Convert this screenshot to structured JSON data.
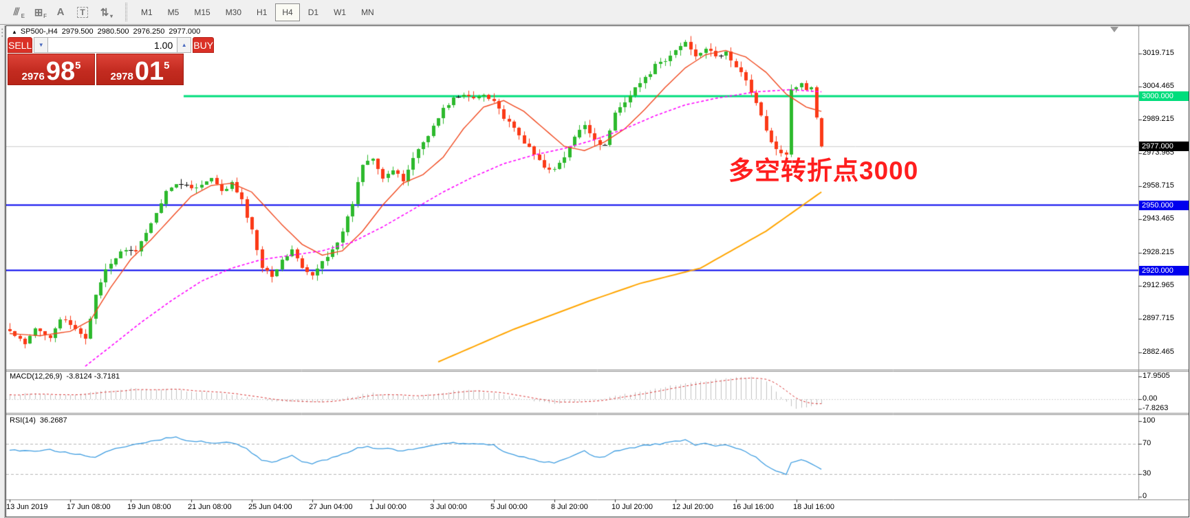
{
  "toolbar": {
    "tools": [
      {
        "id": "studies-icon",
        "glyph": "⫻",
        "sub": "E"
      },
      {
        "id": "grid-icon",
        "glyph": "⊞",
        "sub": "F"
      },
      {
        "id": "text-icon",
        "glyph": "A",
        "sub": ""
      },
      {
        "id": "textbox-icon",
        "glyph": "T",
        "sub": "",
        "boxed": true
      },
      {
        "id": "arrows-icon",
        "glyph": "⇅",
        "sub": "▾"
      }
    ],
    "timeframes": [
      "M1",
      "M5",
      "M15",
      "M30",
      "H1",
      "H4",
      "D1",
      "W1",
      "MN"
    ],
    "active_timeframe": "H4"
  },
  "chart": {
    "symbol_period": "SP500-,H4",
    "open": "2979.500",
    "high": "2980.500",
    "low": "2976.250",
    "close": "2977.000",
    "annotation": "多空转折点3000"
  },
  "trade_panel": {
    "sell_label": "SELL",
    "buy_label": "BUY",
    "volume": "1.00",
    "sell_price": {
      "prefix": "2976",
      "big": "98",
      "sup": "5"
    },
    "buy_price": {
      "prefix": "2978",
      "big": "01",
      "sup": "5"
    }
  },
  "panes": {
    "macd": {
      "title": "MACD(12,26,9)",
      "values": "-3.8124 -3.7181"
    },
    "rsi": {
      "title": "RSI(14)",
      "values": "36.2687"
    }
  },
  "axes": {
    "price_ticks": [
      "3019.715",
      "3004.465",
      "2989.215",
      "2973.965",
      "2958.715",
      "2943.465",
      "2928.215",
      "2912.965",
      "2897.715",
      "2882.465"
    ],
    "price_tick_values": [
      3019.715,
      3004.465,
      2989.215,
      2973.965,
      2958.715,
      2943.465,
      2928.215,
      2912.965,
      2897.715,
      2882.465
    ],
    "levels": [
      {
        "label": "3000.000",
        "price": 3000,
        "color": "#00dd7c"
      },
      {
        "label": "2950.000",
        "price": 2950,
        "color": "#0000ee"
      },
      {
        "label": "2920.000",
        "price": 2920,
        "color": "#0000ee"
      }
    ],
    "current_price": {
      "label": "2977.000",
      "price": 2977,
      "color": "#000000"
    },
    "macd_ticks": [
      {
        "label": "17.9505",
        "value": 17.9505
      },
      {
        "label": "0.00",
        "value": 0
      },
      {
        "label": "-7.8263",
        "value": -7.8263
      }
    ],
    "rsi_ticks": [
      {
        "label": "100",
        "value": 100
      },
      {
        "label": "70",
        "value": 70
      },
      {
        "label": "30",
        "value": 30
      },
      {
        "label": "0",
        "value": 0
      }
    ],
    "time_ticks": [
      "13 Jun 2019",
      "17 Jun 08:00",
      "19 Jun 08:00",
      "21 Jun 08:00",
      "25 Jun 04:00",
      "27 Jun 04:00",
      "1 Jul 00:00",
      "3 Jul 00:00",
      "5 Jul 00:00",
      "8 Jul 20:00",
      "10 Jul 20:00",
      "12 Jul 20:00",
      "16 Jul 16:00",
      "18 Jul 16:00"
    ]
  },
  "chart_data": {
    "type": "candlestick",
    "title": "SP500-,H4",
    "timeframe": "H4",
    "bar_count": 162,
    "price_range": [
      2874,
      3032
    ],
    "close_keypoints": [
      [
        0,
        2892
      ],
      [
        3,
        2886
      ],
      [
        5,
        2893
      ],
      [
        8,
        2890
      ],
      [
        10,
        2898
      ],
      [
        13,
        2893
      ],
      [
        15,
        2889
      ],
      [
        17,
        2908
      ],
      [
        19,
        2920
      ],
      [
        21,
        2926
      ],
      [
        23,
        2930
      ],
      [
        25,
        2928
      ],
      [
        27,
        2938
      ],
      [
        29,
        2946
      ],
      [
        31,
        2957
      ],
      [
        34,
        2960
      ],
      [
        37,
        2958
      ],
      [
        40,
        2962
      ],
      [
        42,
        2956
      ],
      [
        44,
        2960
      ],
      [
        46,
        2952
      ],
      [
        48,
        2938
      ],
      [
        50,
        2922
      ],
      [
        52,
        2918
      ],
      [
        54,
        2924
      ],
      [
        56,
        2930
      ],
      [
        58,
        2921
      ],
      [
        60,
        2917
      ],
      [
        62,
        2924
      ],
      [
        64,
        2930
      ],
      [
        66,
        2937
      ],
      [
        68,
        2951
      ],
      [
        70,
        2969
      ],
      [
        72,
        2972
      ],
      [
        74,
        2963
      ],
      [
        76,
        2966
      ],
      [
        78,
        2961
      ],
      [
        80,
        2972
      ],
      [
        82,
        2979
      ],
      [
        84,
        2986
      ],
      [
        86,
        2994
      ],
      [
        88,
        2999
      ],
      [
        90,
        3000
      ],
      [
        92,
        2999
      ],
      [
        94,
        3001
      ],
      [
        96,
        2998
      ],
      [
        98,
        2990
      ],
      [
        100,
        2985
      ],
      [
        102,
        2979
      ],
      [
        104,
        2973
      ],
      [
        106,
        2968
      ],
      [
        108,
        2966
      ],
      [
        110,
        2972
      ],
      [
        112,
        2981
      ],
      [
        114,
        2987
      ],
      [
        116,
        2980
      ],
      [
        118,
        2977
      ],
      [
        120,
        2992
      ],
      [
        122,
        2998
      ],
      [
        124,
        3004
      ],
      [
        126,
        3008
      ],
      [
        128,
        3014
      ],
      [
        130,
        3016
      ],
      [
        132,
        3021
      ],
      [
        134,
        3025
      ],
      [
        136,
        3019
      ],
      [
        138,
        3022
      ],
      [
        140,
        3018
      ],
      [
        142,
        3020
      ],
      [
        144,
        3013
      ],
      [
        146,
        3008
      ],
      [
        148,
        2997
      ],
      [
        150,
        2984
      ],
      [
        152,
        2975
      ],
      [
        154,
        2973
      ],
      [
        155,
        3003
      ],
      [
        156,
        3004
      ],
      [
        157,
        3006
      ],
      [
        158,
        3003
      ],
      [
        159,
        3004
      ],
      [
        160,
        2990
      ],
      [
        161,
        2977
      ]
    ],
    "ma_fast_keypoints": [
      [
        0,
        2891
      ],
      [
        6,
        2890
      ],
      [
        12,
        2892
      ],
      [
        16,
        2897
      ],
      [
        20,
        2912
      ],
      [
        24,
        2925
      ],
      [
        28,
        2934
      ],
      [
        32,
        2944
      ],
      [
        36,
        2954
      ],
      [
        40,
        2959
      ],
      [
        44,
        2960
      ],
      [
        48,
        2956
      ],
      [
        50,
        2951
      ],
      [
        54,
        2941
      ],
      [
        58,
        2932
      ],
      [
        62,
        2927
      ],
      [
        66,
        2929
      ],
      [
        70,
        2938
      ],
      [
        74,
        2950
      ],
      [
        78,
        2960
      ],
      [
        82,
        2964
      ],
      [
        86,
        2972
      ],
      [
        90,
        2985
      ],
      [
        94,
        2995
      ],
      [
        98,
        2998
      ],
      [
        102,
        2993
      ],
      [
        106,
        2985
      ],
      [
        110,
        2977
      ],
      [
        114,
        2975
      ],
      [
        118,
        2979
      ],
      [
        122,
        2985
      ],
      [
        126,
        2994
      ],
      [
        130,
        3004
      ],
      [
        134,
        3013
      ],
      [
        138,
        3019
      ],
      [
        142,
        3021
      ],
      [
        146,
        3018
      ],
      [
        150,
        3011
      ],
      [
        154,
        3001
      ],
      [
        158,
        2995
      ],
      [
        161,
        2993
      ]
    ],
    "ma_mid_keypoints": [
      [
        15,
        2876
      ],
      [
        20,
        2885
      ],
      [
        26,
        2896
      ],
      [
        32,
        2906
      ],
      [
        38,
        2915
      ],
      [
        44,
        2921
      ],
      [
        50,
        2925
      ],
      [
        56,
        2927
      ],
      [
        62,
        2929
      ],
      [
        68,
        2933
      ],
      [
        74,
        2940
      ],
      [
        80,
        2948
      ],
      [
        86,
        2956
      ],
      [
        92,
        2963
      ],
      [
        98,
        2969
      ],
      [
        104,
        2973
      ],
      [
        110,
        2976
      ],
      [
        116,
        2980
      ],
      [
        122,
        2985
      ],
      [
        128,
        2991
      ],
      [
        134,
        2996
      ],
      [
        140,
        2999
      ],
      [
        148,
        3002
      ],
      [
        155,
        3003
      ],
      [
        161,
        3002
      ]
    ],
    "ma_slow_keypoints": [
      [
        85,
        2878
      ],
      [
        100,
        2893
      ],
      [
        115,
        2906
      ],
      [
        125,
        2914
      ],
      [
        137,
        2921
      ],
      [
        150,
        2938
      ],
      [
        161,
        2956
      ]
    ],
    "macd": {
      "main_end": -3.8124,
      "signal_end": -3.7181,
      "max": 17.9505,
      "min": -7.8263,
      "keypoints": [
        [
          0,
          3
        ],
        [
          4,
          4.5
        ],
        [
          8,
          3.2
        ],
        [
          12,
          2.8
        ],
        [
          16,
          5
        ],
        [
          20,
          7
        ],
        [
          24,
          8.2
        ],
        [
          28,
          7.6
        ],
        [
          32,
          8
        ],
        [
          36,
          6.2
        ],
        [
          40,
          5
        ],
        [
          44,
          3.5
        ],
        [
          48,
          0.5
        ],
        [
          52,
          -1.8
        ],
        [
          56,
          -2.6
        ],
        [
          60,
          -3
        ],
        [
          64,
          -1.2
        ],
        [
          68,
          2.2
        ],
        [
          72,
          5
        ],
        [
          76,
          3.2
        ],
        [
          80,
          2.2
        ],
        [
          84,
          4.2
        ],
        [
          88,
          6.5
        ],
        [
          92,
          7
        ],
        [
          96,
          4.8
        ],
        [
          100,
          1.5
        ],
        [
          104,
          -1.5
        ],
        [
          108,
          -3.6
        ],
        [
          112,
          -2
        ],
        [
          116,
          -0.5
        ],
        [
          120,
          2.2
        ],
        [
          124,
          5
        ],
        [
          128,
          8
        ],
        [
          132,
          11
        ],
        [
          136,
          13.5
        ],
        [
          140,
          15.5
        ],
        [
          144,
          17
        ],
        [
          147,
          17.9
        ],
        [
          150,
          14
        ],
        [
          152,
          6
        ],
        [
          154,
          -2
        ],
        [
          156,
          -7.8
        ],
        [
          158,
          -6.5
        ],
        [
          160,
          -4.6
        ],
        [
          161,
          -3.81
        ]
      ]
    },
    "rsi": {
      "end": 36.2687,
      "levels": [
        70,
        30
      ],
      "keypoints": [
        [
          0,
          62
        ],
        [
          4,
          60
        ],
        [
          8,
          62
        ],
        [
          12,
          58
        ],
        [
          15,
          55
        ],
        [
          17,
          52
        ],
        [
          19,
          60
        ],
        [
          23,
          66
        ],
        [
          27,
          72
        ],
        [
          31,
          77
        ],
        [
          33,
          80
        ],
        [
          35,
          74
        ],
        [
          38,
          73
        ],
        [
          41,
          70
        ],
        [
          44,
          72
        ],
        [
          47,
          64
        ],
        [
          50,
          48
        ],
        [
          52,
          45
        ],
        [
          54,
          50
        ],
        [
          56,
          54
        ],
        [
          58,
          47
        ],
        [
          60,
          44
        ],
        [
          63,
          49
        ],
        [
          66,
          56
        ],
        [
          69,
          64
        ],
        [
          71,
          67
        ],
        [
          73,
          63
        ],
        [
          75,
          64
        ],
        [
          78,
          60
        ],
        [
          81,
          65
        ],
        [
          84,
          68
        ],
        [
          87,
          71
        ],
        [
          90,
          71
        ],
        [
          93,
          70
        ],
        [
          96,
          69
        ],
        [
          98,
          60
        ],
        [
          100,
          55
        ],
        [
          102,
          52
        ],
        [
          105,
          47
        ],
        [
          108,
          45
        ],
        [
          110,
          50
        ],
        [
          112,
          56
        ],
        [
          114,
          60
        ],
        [
          116,
          54
        ],
        [
          118,
          52
        ],
        [
          120,
          60
        ],
        [
          123,
          64
        ],
        [
          126,
          68
        ],
        [
          129,
          70
        ],
        [
          132,
          73
        ],
        [
          134,
          75
        ],
        [
          136,
          68
        ],
        [
          138,
          70
        ],
        [
          140,
          67
        ],
        [
          142,
          69
        ],
        [
          144,
          64
        ],
        [
          146,
          60
        ],
        [
          148,
          52
        ],
        [
          150,
          42
        ],
        [
          152,
          34
        ],
        [
          154,
          29
        ],
        [
          155,
          45
        ],
        [
          157,
          50
        ],
        [
          158,
          47
        ],
        [
          160,
          40
        ],
        [
          161,
          36.3
        ]
      ]
    },
    "colors": {
      "up": "#2db92d",
      "down": "#fb3a17",
      "doji": "#000000",
      "ma_fast": "#f0481e",
      "ma_mid": "#ff00ff",
      "ma_slow": "#ffa500",
      "macd_hist": "#c0c0c0",
      "macd_signal": "#d83030",
      "rsi_line": "#3d9ce0",
      "level_green": "#00dd7c",
      "level_blue": "#0000ee",
      "current_line": "#cccccc",
      "current_label_bg": "#000000"
    }
  }
}
